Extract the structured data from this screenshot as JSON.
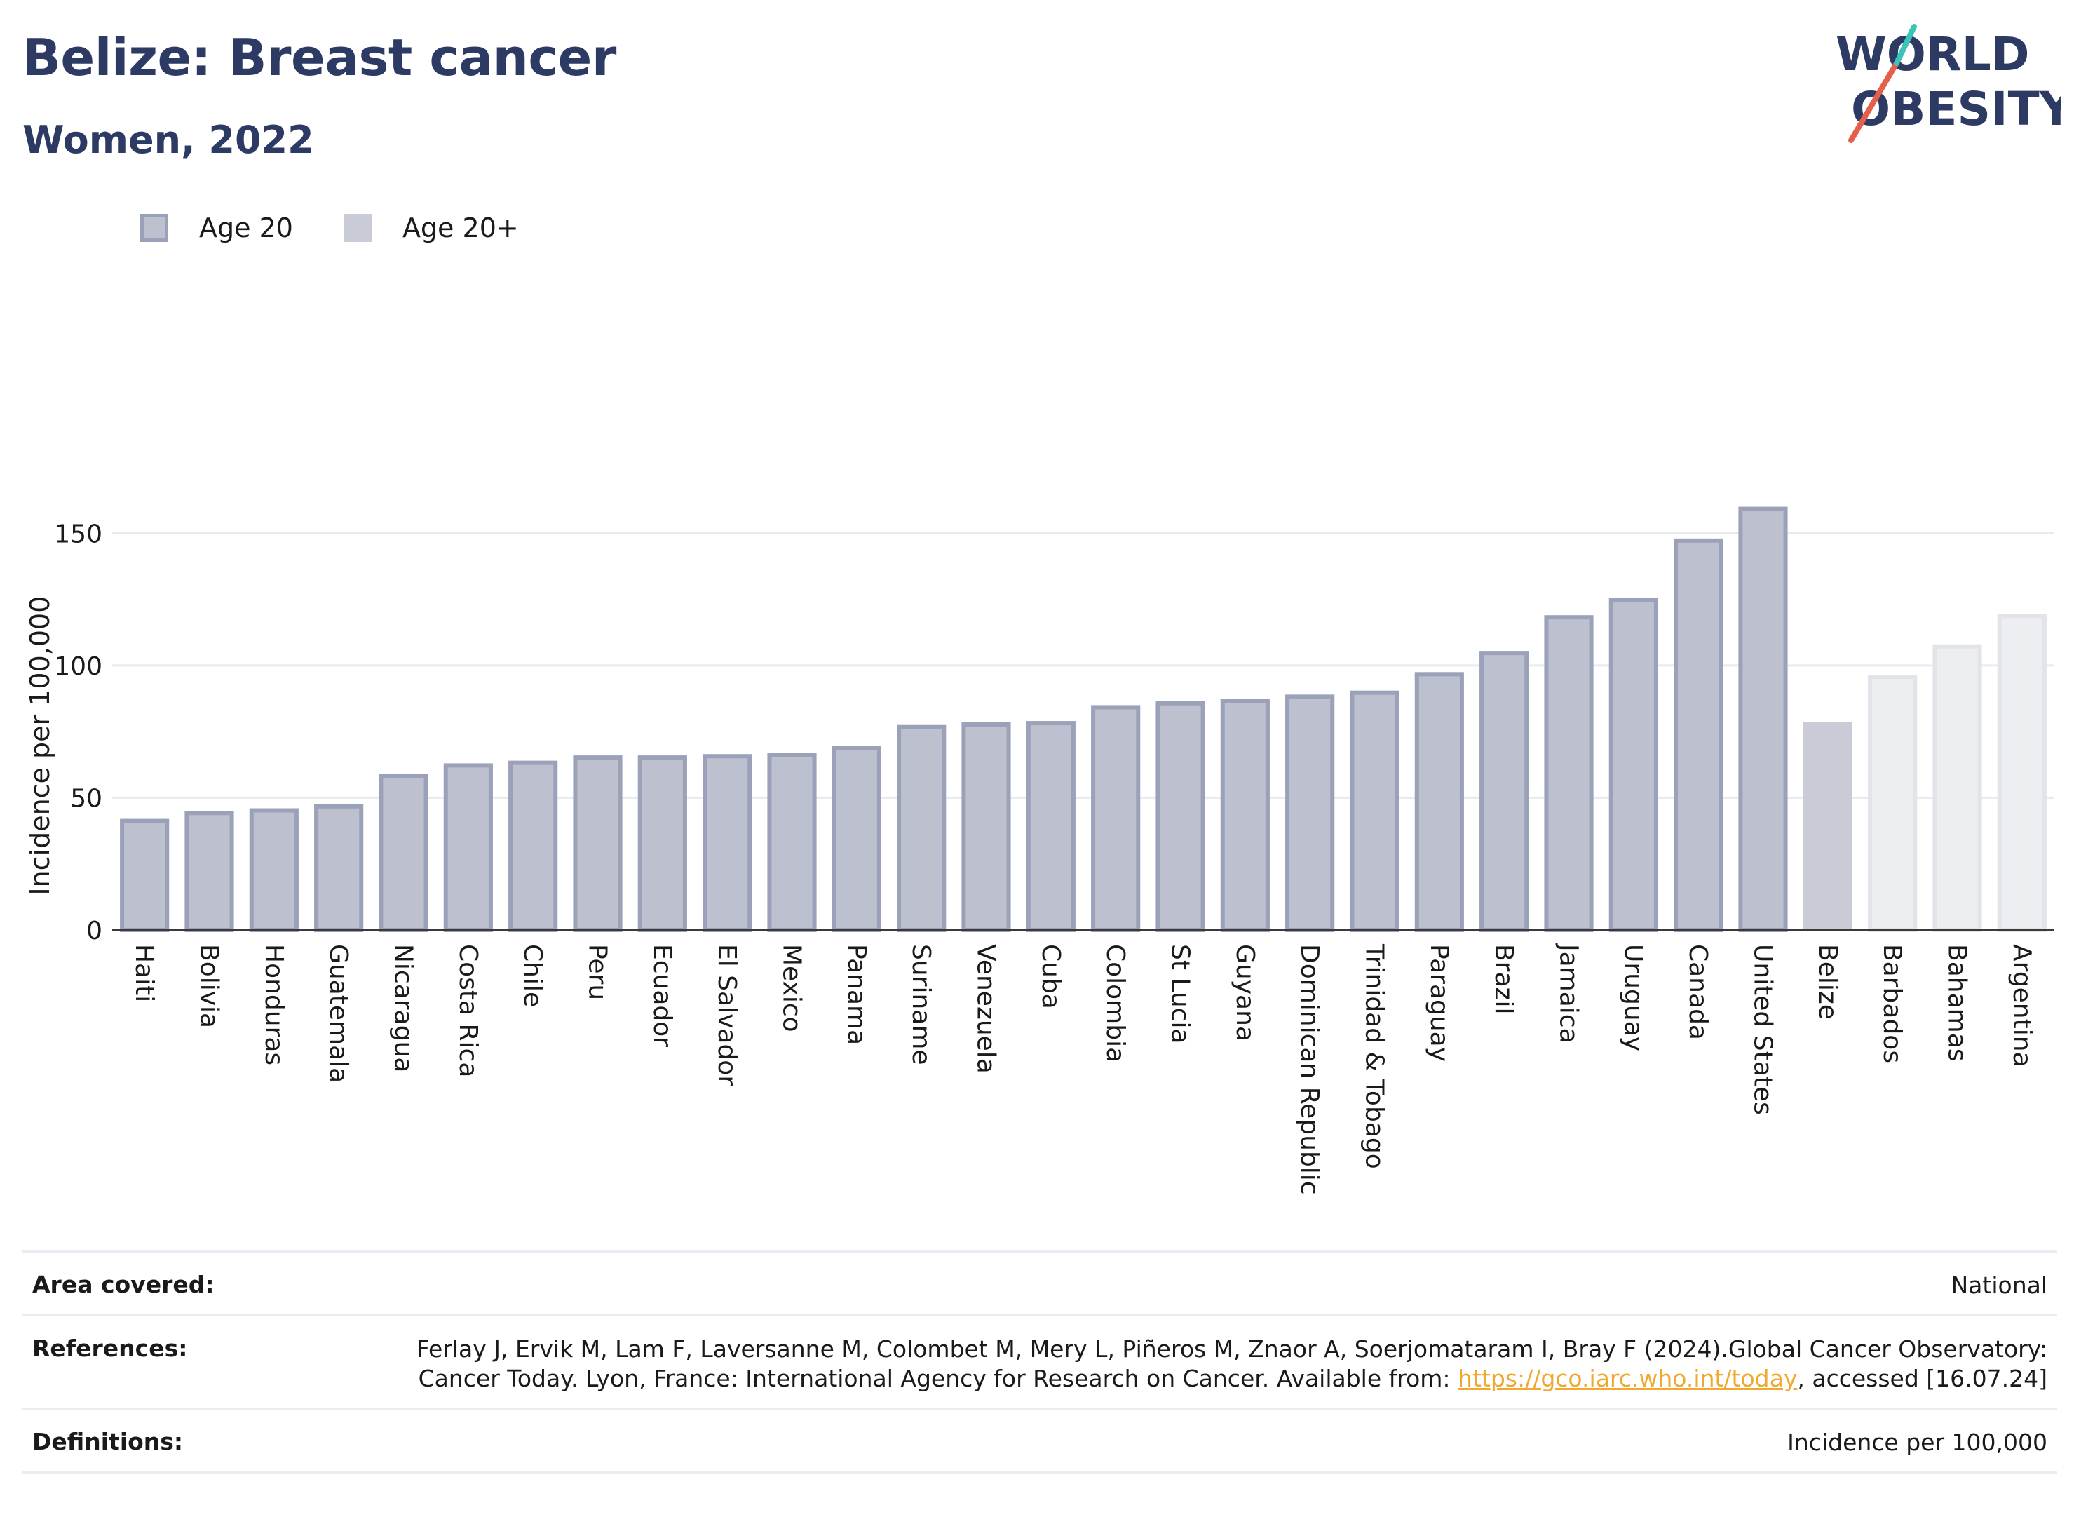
{
  "header": {
    "title": "Belize: Breast cancer",
    "subtitle": "Women, 2022"
  },
  "logo": {
    "line1": "WORLD",
    "line2": "OBESITY",
    "colors": {
      "text": "#2d3a63",
      "slash_red": "#e5604b",
      "slash_teal": "#3cc4b9"
    }
  },
  "legend": [
    {
      "label": "Age 20",
      "color": "#bcc0cf",
      "border": "#9ba1b9"
    },
    {
      "label": "Age 20+",
      "color": "#c9cbd7"
    }
  ],
  "chart_data": {
    "type": "bar",
    "ylabel": "Incidence per 100,000",
    "xlabel": "",
    "ylim": [
      0,
      175
    ],
    "yticks": [
      0,
      50,
      100,
      150
    ],
    "grid": true,
    "legend_position": "top-left",
    "categories": [
      "Haiti",
      "Bolivia",
      "Honduras",
      "Guatemala",
      "Nicaragua",
      "Costa Rica",
      "Chile",
      "Peru",
      "Ecuador",
      "El Salvador",
      "Mexico",
      "Panama",
      "Suriname",
      "Venezuela",
      "Cuba",
      "Colombia",
      "St Lucia",
      "Guyana",
      "Dominican Republic",
      "Trinidad & Tobago",
      "Paraguay",
      "Brazil",
      "Jamaica",
      "Uruguay",
      "Canada",
      "United States",
      "Belize",
      "Barbados",
      "Bahamas",
      "Argentina"
    ],
    "values": [
      42,
      45,
      46,
      47.5,
      59,
      63,
      64,
      66,
      66,
      66.5,
      67,
      69.5,
      77.5,
      78.5,
      79,
      85,
      86.5,
      87.5,
      89,
      90.5,
      97.5,
      105.5,
      119,
      125.5,
      148,
      160,
      78.5,
      96.5,
      108,
      119.5
    ],
    "series_of_bar": [
      "Age 20",
      "Age 20",
      "Age 20",
      "Age 20",
      "Age 20",
      "Age 20",
      "Age 20",
      "Age 20",
      "Age 20",
      "Age 20",
      "Age 20",
      "Age 20",
      "Age 20",
      "Age 20",
      "Age 20",
      "Age 20",
      "Age 20",
      "Age 20",
      "Age 20",
      "Age 20",
      "Age 20",
      "Age 20",
      "Age 20",
      "Age 20",
      "Age 20",
      "Age 20",
      "Age 20+",
      "Age 20+",
      "Age 20+",
      "Age 20+"
    ],
    "colors": {
      "age20_fill": "#bcc0cf",
      "age20_border": "#9ba1b9",
      "highlight_fill": "#c9cbd7",
      "faded_fill": "#edeef2",
      "faded_border": "#e3e4ea",
      "grid": "#e8eaf0",
      "axis": "#3a3a3a"
    }
  },
  "footer": {
    "area": {
      "label": "Area covered:",
      "value": "National"
    },
    "references": {
      "label": "References:",
      "text": "Ferlay J, Ervik M, Lam F, Laversanne M, Colombet M, Mery L, Piñeros M, Znaor A, Soerjomataram I, Bray F (2024).Global Cancer Observatory: Cancer Today. Lyon, France: International Agency for Research on Cancer. Available from: ",
      "link": "https://gco.iarc.who.int/today",
      "suffix": ", accessed [16.07.24]"
    },
    "definitions": {
      "label": "Definitions:",
      "value": "Incidence per 100,000"
    }
  }
}
